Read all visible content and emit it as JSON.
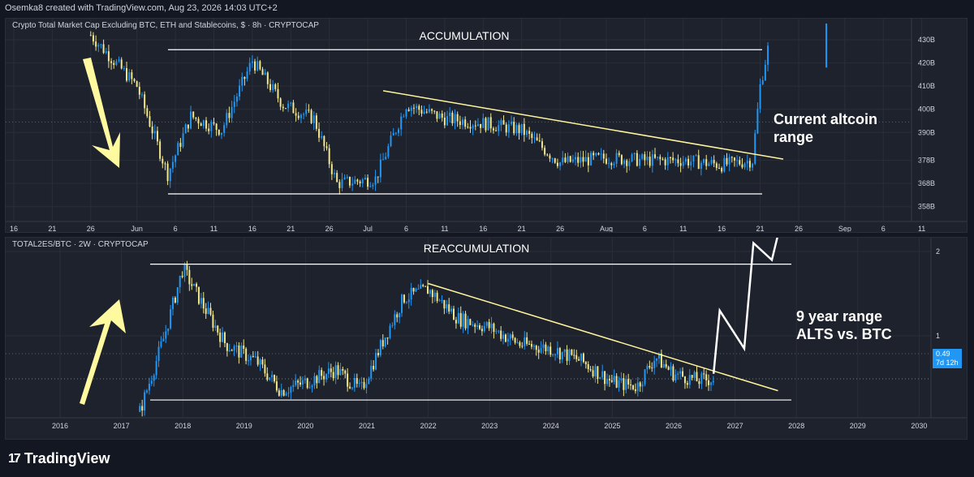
{
  "header": {
    "credit": "Osemka8 created with TradingView.com, Aug 23, 2026 14:03 UTC+2"
  },
  "footer": {
    "brand": "TradingView",
    "logo_icon": "tradingview-logo-icon"
  },
  "colors": {
    "background": "#131722",
    "pane": "#1e222d",
    "grid": "#2a2e39",
    "candle_up": "#2196f3",
    "candle_down": "#f0e68c",
    "trendline": "#fff59d",
    "range_line": "#ffffff",
    "arrow": "#fffaa0",
    "text": "#d1d4dc",
    "price_tag": "#2196f3"
  },
  "chart_data": [
    {
      "type": "candlestick",
      "title": "Crypto Total Market Cap Excluding BTC, ETH and Stablecoins, $ · 8h · CRYPTOCAP",
      "annotations": [
        "ACCUMULATION",
        "Current altcoin",
        "range"
      ],
      "x_tick_labels": [
        "16",
        "21",
        "26",
        "Jun",
        "6",
        "11",
        "16",
        "21",
        "26",
        "Jul",
        "6",
        "11",
        "16",
        "21",
        "26",
        "Aug",
        "6",
        "11",
        "16",
        "21",
        "26",
        "Sep",
        "6",
        "11"
      ],
      "y_tick_labels": [
        "430B",
        "420B",
        "410B",
        "400B",
        "390B",
        "378B",
        "368B",
        "358B"
      ],
      "y_ticks": [
        430,
        420,
        410,
        400,
        390,
        378,
        368,
        358
      ],
      "ylim": [
        353,
        437
      ],
      "range_lines": {
        "upper": 425.7,
        "lower": 363.5
      },
      "trendline": [
        {
          "x": "Jul 3",
          "y": 408
        },
        {
          "x": "Aug 24",
          "y": 378.5
        }
      ],
      "dotted_levels": [
        394.5
      ],
      "series": [
        {
          "x": "May 26",
          "y": 432
        },
        {
          "x": "Jun 1",
          "y": 410
        },
        {
          "x": "Jun 5",
          "y": 372
        },
        {
          "x": "Jun 8",
          "y": 397
        },
        {
          "x": "Jun 12",
          "y": 391
        },
        {
          "x": "Jun 16",
          "y": 421
        },
        {
          "x": "Jun 20",
          "y": 402
        },
        {
          "x": "Jun 24",
          "y": 396
        },
        {
          "x": "Jun 27",
          "y": 368
        },
        {
          "x": "Jul 2",
          "y": 370
        },
        {
          "x": "Jul 6",
          "y": 402
        },
        {
          "x": "Jul 11",
          "y": 396
        },
        {
          "x": "Jul 16",
          "y": 394
        },
        {
          "x": "Jul 21",
          "y": 391
        },
        {
          "x": "Jul 26",
          "y": 377
        },
        {
          "x": "Aug 1",
          "y": 379
        },
        {
          "x": "Aug 6",
          "y": 378
        },
        {
          "x": "Aug 11",
          "y": 378
        },
        {
          "x": "Aug 16",
          "y": 376
        },
        {
          "x": "Aug 20",
          "y": 378
        },
        {
          "x": "Aug 21",
          "y": 410
        },
        {
          "x": "Aug 22",
          "y": 426
        }
      ]
    },
    {
      "type": "candlestick",
      "title": "TOTAL2ES/BTC · 2W · CRYPTOCAP",
      "annotations": [
        "REACCUMULATION",
        "9 year range",
        "ALTS vs. BTC"
      ],
      "x_tick_labels": [
        "2016",
        "2017",
        "2018",
        "2019",
        "2020",
        "2021",
        "2022",
        "2023",
        "2024",
        "2025",
        "2026",
        "2027",
        "2028",
        "2029",
        "2030"
      ],
      "y_tick_labels": [
        "2",
        "1"
      ],
      "y_ticks": [
        2,
        1
      ],
      "last_price": {
        "value": "0.49",
        "countdown": "7d 12h"
      },
      "range_lines": {
        "upper": 1.85,
        "lower": 0.24
      },
      "trendline": [
        {
          "x": 2022.0,
          "y": 1.62
        },
        {
          "x": 2027.7,
          "y": 0.35
        }
      ],
      "projection": [
        {
          "x": 2026.65,
          "y": 0.55
        },
        {
          "x": 2026.75,
          "y": 1.3
        },
        {
          "x": 2027.15,
          "y": 0.85
        },
        {
          "x": 2027.3,
          "y": 2.1
        },
        {
          "x": 2027.6,
          "y": 1.9
        },
        {
          "x": 2027.7,
          "y": 2.2
        }
      ],
      "series": [
        {
          "x": 2017.3,
          "y": 0.1
        },
        {
          "x": 2017.7,
          "y": 1.0
        },
        {
          "x": 2018.0,
          "y": 1.8
        },
        {
          "x": 2018.3,
          "y": 1.4
        },
        {
          "x": 2018.7,
          "y": 0.9
        },
        {
          "x": 2019.2,
          "y": 0.7
        },
        {
          "x": 2019.6,
          "y": 0.35
        },
        {
          "x": 2020.0,
          "y": 0.45
        },
        {
          "x": 2020.5,
          "y": 0.6
        },
        {
          "x": 2020.9,
          "y": 0.35
        },
        {
          "x": 2021.3,
          "y": 1.0
        },
        {
          "x": 2021.6,
          "y": 1.45
        },
        {
          "x": 2022.0,
          "y": 1.55
        },
        {
          "x": 2022.5,
          "y": 1.2
        },
        {
          "x": 2023.0,
          "y": 1.1
        },
        {
          "x": 2023.5,
          "y": 0.9
        },
        {
          "x": 2024.0,
          "y": 0.85
        },
        {
          "x": 2024.5,
          "y": 0.7
        },
        {
          "x": 2025.0,
          "y": 0.45
        },
        {
          "x": 2025.4,
          "y": 0.4
        },
        {
          "x": 2025.7,
          "y": 0.75
        },
        {
          "x": 2026.0,
          "y": 0.55
        },
        {
          "x": 2026.4,
          "y": 0.47
        },
        {
          "x": 2026.65,
          "y": 0.49
        }
      ]
    }
  ]
}
